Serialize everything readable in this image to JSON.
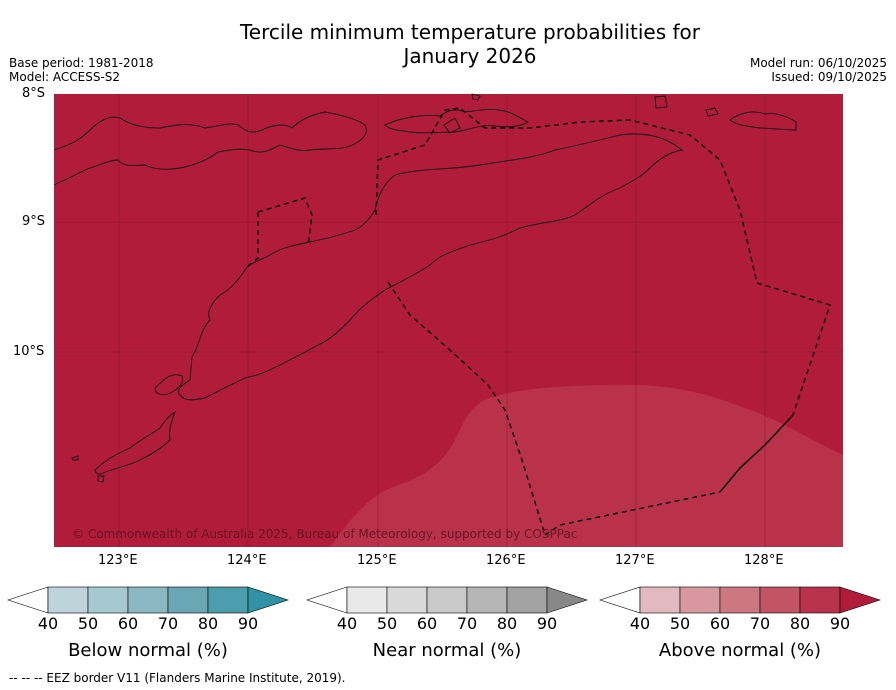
{
  "title_line1": "Tercile minimum temperature probabilities for",
  "title_line2": "January 2026",
  "base_period": "Base period: 1981-2018",
  "model": "Model: ACCESS-S2",
  "model_run": "Model run: 06/10/2025",
  "issued": "Issued: 09/10/2025",
  "copyright": "© Commonwealth of Australia 2025, Bureau of Meteorology, supported by COSPPac",
  "lat_labels": [
    "8°S",
    "9°S",
    "10°S"
  ],
  "lon_labels": [
    "123°E",
    "124°E",
    "125°E",
    "126°E",
    "127°E",
    "128°E"
  ],
  "legends": [
    {
      "name": "Below normal (%)",
      "ticks": [
        "40",
        "50",
        "60",
        "70",
        "80",
        "90"
      ],
      "colors": [
        "#ffffff",
        "#bcd4da",
        "#a6c9cf",
        "#8bb8c2",
        "#6aa7b4",
        "#4a9ead",
        "#2f93a4"
      ]
    },
    {
      "name": "Near normal (%)",
      "ticks": [
        "40",
        "50",
        "60",
        "70",
        "80",
        "90"
      ],
      "colors": [
        "#ffffff",
        "#e9e9e9",
        "#d9d9d9",
        "#c9c9c9",
        "#b6b6b6",
        "#a2a2a2",
        "#888888"
      ]
    },
    {
      "name": "Above normal (%)",
      "ticks": [
        "40",
        "50",
        "60",
        "70",
        "80",
        "90"
      ],
      "colors": [
        "#ffffff",
        "#e3b9c0",
        "#d9979f",
        "#cd7880",
        "#c25464",
        "#b8334b",
        "#b01c3a"
      ]
    }
  ],
  "footnote": "--  --  -- EEZ border V11 (Flanders Marine Institute, 2019).",
  "colors": {
    "above_90": "#b01c3a",
    "above_80": "#b92f47"
  }
}
